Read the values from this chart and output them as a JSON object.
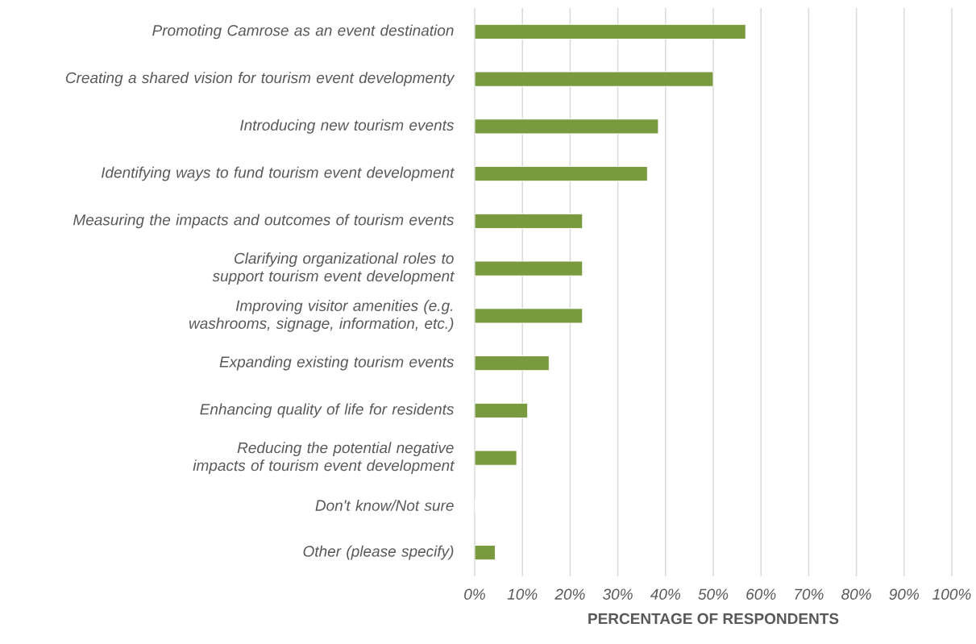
{
  "chart_data": {
    "type": "bar",
    "orientation": "horizontal",
    "categories": [
      "Promoting Camrose as an event destination",
      "Creating a shared vision for tourism event developmenty",
      "Introducing new tourism events",
      "Identifying ways to fund tourism event development",
      "Measuring the impacts and outcomes of tourism events",
      "Clarifying organizational roles to support tourism event development",
      "Improving visitor amenities (e.g. washrooms, signage, information, etc.)",
      "Expanding existing tourism events",
      "Enhancing quality of life for residents",
      "Reducing the potential negative impacts of tourism event development",
      "Don't know/Not sure",
      "Other (please specify)"
    ],
    "values": [
      56.8,
      50.0,
      38.5,
      36.2,
      22.6,
      22.6,
      22.6,
      15.6,
      11.1,
      8.8,
      0,
      4.3
    ],
    "color": "#7a9a3f",
    "xlim": [
      0,
      100
    ],
    "xticks": [
      {
        "value": 0,
        "label": "0%"
      },
      {
        "value": 10,
        "label": "10%"
      },
      {
        "value": 20,
        "label": "20%"
      },
      {
        "value": 30,
        "label": "30%"
      },
      {
        "value": 40,
        "label": "40%"
      },
      {
        "value": 50,
        "label": "50%"
      },
      {
        "value": 60,
        "label": "60%"
      },
      {
        "value": 70,
        "label": "70%"
      },
      {
        "value": 80,
        "label": "80%"
      },
      {
        "value": 90,
        "label": "90%"
      },
      {
        "value": 100,
        "label": "100%"
      }
    ],
    "xlabel": "PERCENTAGE OF RESPONDENTS",
    "grid": "x"
  }
}
